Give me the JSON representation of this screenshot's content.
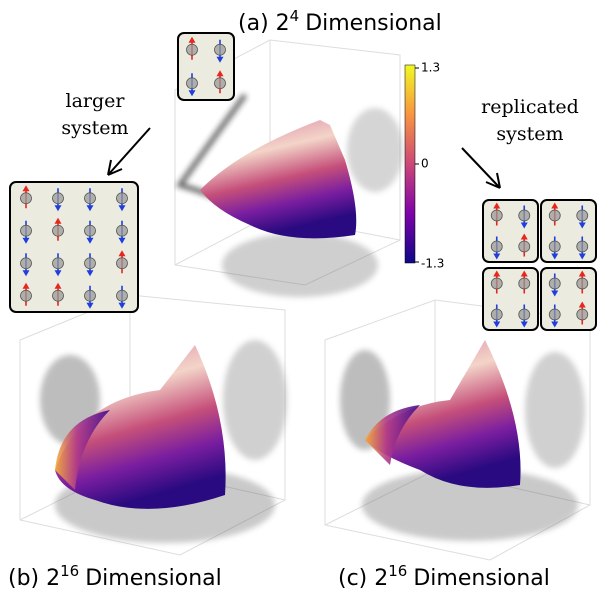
{
  "panels": [
    {
      "label": "(a)",
      "base": "2",
      "exponent": "4",
      "caption": "Dimensional"
    },
    {
      "label": "(b)",
      "base": "2",
      "exponent": "16",
      "caption": "Dimensional"
    },
    {
      "label": "(c)",
      "base": "2",
      "exponent": "16",
      "caption": "Dimensional"
    }
  ],
  "annotations": {
    "left": [
      "larger",
      "system"
    ],
    "right": [
      "replicated",
      "system"
    ]
  },
  "colorbar": {
    "ticks": [
      "1.3",
      "0",
      "-1.3"
    ]
  }
}
